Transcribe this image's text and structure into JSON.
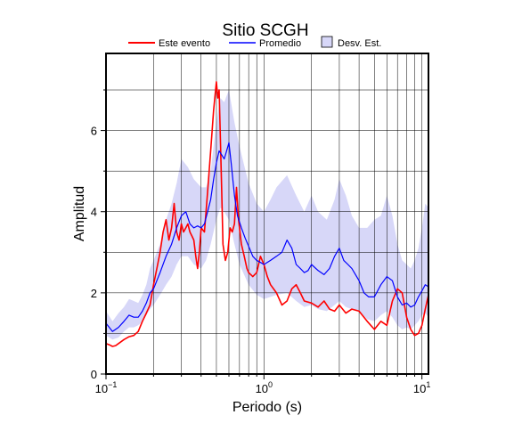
{
  "chart_data": {
    "type": "line",
    "title": "Sitio SCGH",
    "xlabel": "Periodo (s)",
    "ylabel": "Amplitud",
    "x_scale": "log",
    "xlim": [
      0.1,
      11
    ],
    "ylim": [
      0,
      7.9
    ],
    "grid": true,
    "legend_position": "top",
    "x_ticks": [
      {
        "value": 0.1,
        "base": "10",
        "exp": "−1"
      },
      {
        "value": 1,
        "base": "10",
        "exp": "0"
      },
      {
        "value": 10,
        "base": "10",
        "exp": "1"
      }
    ],
    "y_ticks": [
      0,
      2,
      4,
      6
    ],
    "legend": [
      {
        "label": "Este evento",
        "kind": "line",
        "color": "#ff0000"
      },
      {
        "label": "Promedio",
        "kind": "line",
        "color": "#0000ff"
      },
      {
        "label": "Desv. Est.",
        "kind": "box",
        "color": "#d7d7f8"
      }
    ],
    "colors": {
      "event": "#ff0000",
      "mean": "#0000ff",
      "band": "#d7d7f8"
    },
    "series": [
      {
        "name": "Este evento",
        "x": [
          0.1,
          0.105,
          0.11,
          0.115,
          0.12,
          0.13,
          0.14,
          0.15,
          0.16,
          0.17,
          0.18,
          0.19,
          0.2,
          0.21,
          0.22,
          0.23,
          0.24,
          0.25,
          0.26,
          0.27,
          0.28,
          0.29,
          0.3,
          0.31,
          0.32,
          0.33,
          0.34,
          0.35,
          0.36,
          0.37,
          0.38,
          0.39,
          0.4,
          0.42,
          0.44,
          0.46,
          0.48,
          0.5,
          0.51,
          0.52,
          0.53,
          0.54,
          0.55,
          0.57,
          0.59,
          0.61,
          0.63,
          0.65,
          0.67,
          0.69,
          0.72,
          0.75,
          0.78,
          0.8,
          0.85,
          0.9,
          0.95,
          1.0,
          1.05,
          1.1,
          1.2,
          1.3,
          1.4,
          1.5,
          1.6,
          1.7,
          1.8,
          2.0,
          2.2,
          2.4,
          2.6,
          2.8,
          3.0,
          3.3,
          3.6,
          4.0,
          4.5,
          5.0,
          5.5,
          6.0,
          6.5,
          7.0,
          7.5,
          8.0,
          8.5,
          9.0,
          9.5,
          10.0,
          10.5,
          11.0
        ],
        "y": [
          0.75,
          0.72,
          0.68,
          0.7,
          0.75,
          0.85,
          0.92,
          0.95,
          1.05,
          1.3,
          1.5,
          1.7,
          2.2,
          2.6,
          3.0,
          3.5,
          3.8,
          3.3,
          3.6,
          4.2,
          3.5,
          3.3,
          3.7,
          3.5,
          3.6,
          3.7,
          3.5,
          3.4,
          3.3,
          2.9,
          2.6,
          3.0,
          3.6,
          3.5,
          4.5,
          5.5,
          6.5,
          7.2,
          6.8,
          7.0,
          5.8,
          4.5,
          3.2,
          2.8,
          3.0,
          3.6,
          3.5,
          3.7,
          4.6,
          3.8,
          3.2,
          2.9,
          2.6,
          2.5,
          2.4,
          2.5,
          2.9,
          2.7,
          2.4,
          2.2,
          2.0,
          1.7,
          1.8,
          2.1,
          2.2,
          2.0,
          1.8,
          1.75,
          1.65,
          1.8,
          1.6,
          1.55,
          1.7,
          1.5,
          1.6,
          1.55,
          1.3,
          1.1,
          1.3,
          1.2,
          1.8,
          2.1,
          2.0,
          1.4,
          1.1,
          0.95,
          1.0,
          1.2,
          1.6,
          1.95
        ]
      },
      {
        "name": "Promedio",
        "x": [
          0.1,
          0.11,
          0.12,
          0.13,
          0.14,
          0.15,
          0.16,
          0.17,
          0.18,
          0.19,
          0.2,
          0.22,
          0.24,
          0.26,
          0.28,
          0.3,
          0.32,
          0.34,
          0.36,
          0.38,
          0.4,
          0.42,
          0.44,
          0.46,
          0.48,
          0.5,
          0.52,
          0.54,
          0.56,
          0.58,
          0.6,
          0.62,
          0.65,
          0.68,
          0.72,
          0.76,
          0.8,
          0.85,
          0.9,
          0.95,
          1.0,
          1.1,
          1.2,
          1.3,
          1.4,
          1.5,
          1.6,
          1.7,
          1.8,
          1.9,
          2.0,
          2.2,
          2.4,
          2.6,
          2.8,
          3.0,
          3.2,
          3.4,
          3.6,
          3.8,
          4.0,
          4.3,
          4.6,
          5.0,
          5.5,
          6.0,
          6.5,
          7.0,
          7.5,
          8.0,
          8.5,
          9.0,
          9.5,
          10.0,
          10.5,
          11.0
        ],
        "y": [
          1.25,
          1.05,
          1.15,
          1.3,
          1.45,
          1.4,
          1.4,
          1.55,
          1.75,
          2.0,
          2.1,
          2.5,
          2.9,
          3.2,
          3.6,
          3.9,
          4.0,
          3.7,
          3.6,
          3.65,
          3.6,
          3.7,
          4.0,
          4.3,
          4.8,
          5.2,
          5.5,
          5.4,
          5.3,
          5.5,
          5.7,
          5.2,
          4.4,
          3.9,
          3.6,
          3.35,
          3.15,
          2.9,
          2.8,
          2.75,
          2.7,
          2.8,
          2.9,
          3.0,
          3.3,
          3.1,
          2.7,
          2.6,
          2.5,
          2.55,
          2.7,
          2.55,
          2.45,
          2.6,
          2.9,
          3.1,
          2.8,
          2.7,
          2.6,
          2.45,
          2.3,
          2.0,
          1.9,
          1.9,
          2.2,
          2.4,
          2.3,
          1.9,
          1.7,
          1.75,
          1.65,
          1.7,
          1.9,
          2.05,
          2.2,
          2.15
        ]
      }
    ],
    "band": {
      "name": "Desv. Est.",
      "x": [
        0.1,
        0.11,
        0.12,
        0.13,
        0.14,
        0.15,
        0.16,
        0.17,
        0.18,
        0.19,
        0.2,
        0.22,
        0.24,
        0.26,
        0.28,
        0.3,
        0.33,
        0.36,
        0.4,
        0.43,
        0.46,
        0.5,
        0.53,
        0.56,
        0.6,
        0.65,
        0.7,
        0.8,
        0.9,
        1.0,
        1.1,
        1.2,
        1.4,
        1.6,
        1.8,
        2.0,
        2.2,
        2.5,
        2.8,
        3.0,
        3.3,
        3.6,
        4.0,
        4.5,
        5.0,
        5.5,
        6.0,
        6.5,
        7.0,
        7.5,
        8.0,
        8.5,
        9.0,
        9.5,
        10.0,
        10.5,
        11.0
      ],
      "lower": [
        0.95,
        0.85,
        0.9,
        1.05,
        1.15,
        1.15,
        1.2,
        1.3,
        1.45,
        1.6,
        1.7,
        1.95,
        2.2,
        2.4,
        2.7,
        2.9,
        2.9,
        2.7,
        2.6,
        2.8,
        3.2,
        3.8,
        4.1,
        4.0,
        3.8,
        3.2,
        2.7,
        2.2,
        1.95,
        1.85,
        1.9,
        1.95,
        2.0,
        1.8,
        1.65,
        1.7,
        1.6,
        1.55,
        1.7,
        1.8,
        1.65,
        1.6,
        1.55,
        1.35,
        1.3,
        1.45,
        1.55,
        1.4,
        1.2,
        1.1,
        1.15,
        1.1,
        1.2,
        1.3,
        1.45,
        1.5,
        1.4
      ],
      "upper": [
        1.55,
        1.3,
        1.5,
        1.65,
        1.85,
        1.8,
        1.75,
        1.95,
        2.2,
        2.6,
        2.8,
        3.2,
        3.8,
        4.2,
        4.7,
        5.3,
        5.1,
        4.8,
        4.6,
        4.6,
        5.0,
        6.2,
        6.8,
        6.7,
        7.0,
        6.2,
        5.6,
        4.7,
        4.2,
        4.0,
        4.3,
        4.6,
        4.9,
        4.4,
        4.0,
        4.4,
        4.0,
        3.8,
        4.3,
        4.8,
        4.4,
        3.9,
        3.6,
        3.6,
        3.8,
        3.9,
        4.4,
        3.9,
        3.2,
        2.8,
        2.7,
        2.6,
        2.8,
        3.1,
        3.6,
        4.2,
        4.1
      ]
    }
  }
}
